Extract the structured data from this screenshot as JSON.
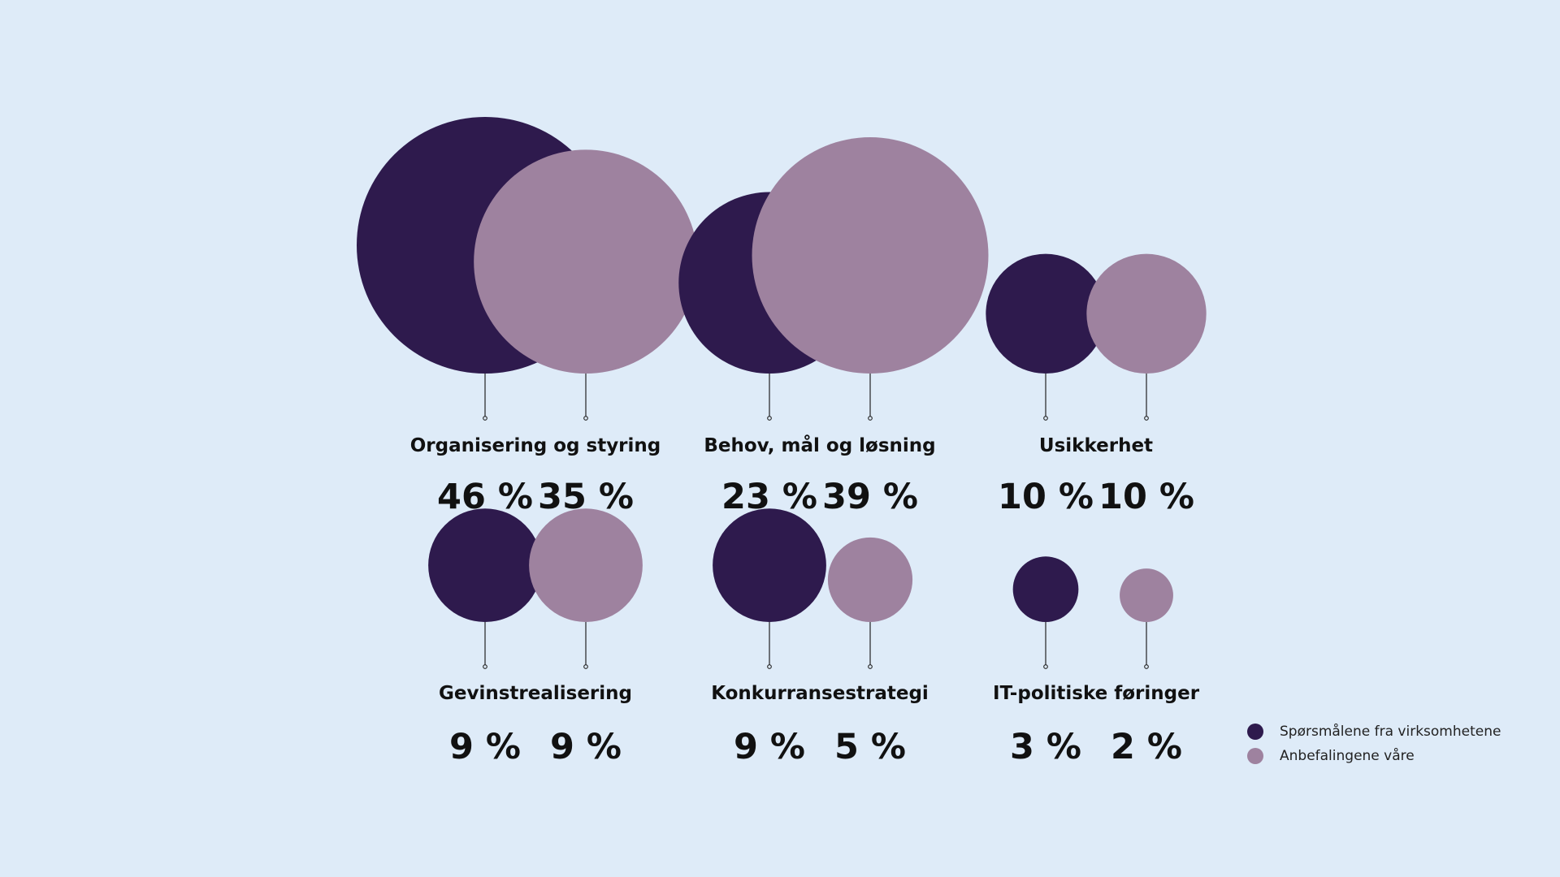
{
  "chart_data": {
    "type": "bubble",
    "categories": [
      "Organisering og styring",
      "Behov, mål og løsning",
      "Usikkerhet",
      "Gevinstrealisering",
      "Konkurransestrategi",
      "IT-politiske føringer"
    ],
    "series": [
      {
        "name": "Spørsmålene fra virksomhetene",
        "color": "#2e1a4d",
        "values": [
          46,
          23,
          10,
          9,
          9,
          3
        ],
        "labels": [
          "46 %",
          "23 %",
          "10 %",
          "9 %",
          "9 %",
          "3 %"
        ]
      },
      {
        "name": "Anbefalingene våre",
        "color": "#9e829f",
        "values": [
          35,
          39,
          10,
          9,
          5,
          2
        ],
        "labels": [
          "35 %",
          "39 %",
          "10 %",
          "9 %",
          "5 %",
          "2 %"
        ]
      }
    ],
    "legend_position": "bottom-right"
  },
  "legend": {
    "items": [
      {
        "label": "Spørsmålene fra virksomhetene",
        "color": "#2e1a4d"
      },
      {
        "label": "Anbefalingene våre",
        "color": "#9e829f"
      }
    ]
  }
}
